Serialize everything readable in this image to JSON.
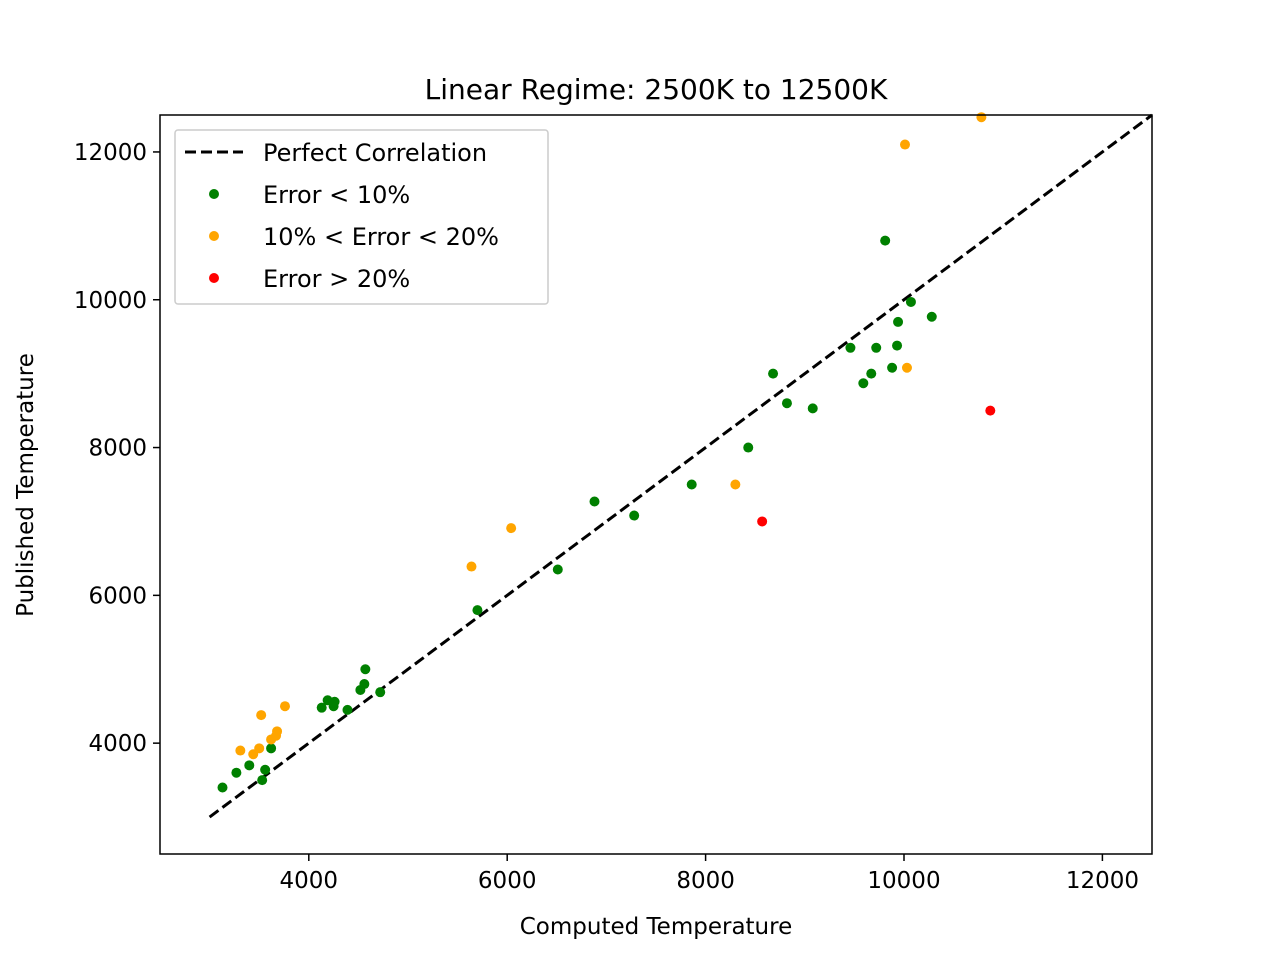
{
  "chart_data": {
    "type": "scatter",
    "title": "Linear Regime: 2500K to 12500K",
    "xlabel": "Computed Temperature",
    "ylabel": "Published Temperature",
    "xlim": [
      2500,
      12500
    ],
    "ylim": [
      2500,
      12500
    ],
    "xticks": [
      4000,
      6000,
      8000,
      10000,
      12000
    ],
    "yticks": [
      4000,
      6000,
      8000,
      10000,
      12000
    ],
    "grid": false,
    "legend_position": "top-left",
    "reference_line": {
      "name": "Perfect Correlation",
      "x": [
        3000,
        12500
      ],
      "y": [
        3000,
        12500
      ],
      "color": "#000000",
      "style": "dashed"
    },
    "series": [
      {
        "name": "Error < 10%",
        "color": "#008000",
        "points": [
          [
            3130,
            3400
          ],
          [
            3270,
            3600
          ],
          [
            3400,
            3700
          ],
          [
            3530,
            3500
          ],
          [
            3560,
            3640
          ],
          [
            3620,
            3930
          ],
          [
            4130,
            4480
          ],
          [
            4190,
            4580
          ],
          [
            4250,
            4500
          ],
          [
            4260,
            4560
          ],
          [
            4390,
            4450
          ],
          [
            4520,
            4720
          ],
          [
            4560,
            4800
          ],
          [
            4570,
            5000
          ],
          [
            4720,
            4690
          ],
          [
            5700,
            5800
          ],
          [
            6510,
            6350
          ],
          [
            6880,
            7270
          ],
          [
            7280,
            7080
          ],
          [
            7860,
            7500
          ],
          [
            8430,
            8000
          ],
          [
            8680,
            9000
          ],
          [
            8820,
            8600
          ],
          [
            9080,
            8530
          ],
          [
            9460,
            9350
          ],
          [
            9590,
            8870
          ],
          [
            9670,
            9000
          ],
          [
            9720,
            9350
          ],
          [
            9810,
            10800
          ],
          [
            9880,
            9080
          ],
          [
            9930,
            9380
          ],
          [
            9940,
            9700
          ],
          [
            10070,
            9970
          ],
          [
            10280,
            9770
          ]
        ]
      },
      {
        "name": "10% < Error < 20%",
        "color": "#ffa500",
        "points": [
          [
            3310,
            3900
          ],
          [
            3440,
            3850
          ],
          [
            3500,
            3930
          ],
          [
            3520,
            4380
          ],
          [
            3620,
            4050
          ],
          [
            3670,
            4100
          ],
          [
            3680,
            4160
          ],
          [
            3760,
            4500
          ],
          [
            5640,
            6390
          ],
          [
            6040,
            6910
          ],
          [
            8300,
            7500
          ],
          [
            10010,
            12100
          ],
          [
            10030,
            9080
          ],
          [
            10780,
            12470
          ]
        ]
      },
      {
        "name": "Error > 20%",
        "color": "#ff0000",
        "points": [
          [
            8570,
            7000
          ],
          [
            10870,
            8500
          ]
        ]
      }
    ]
  }
}
